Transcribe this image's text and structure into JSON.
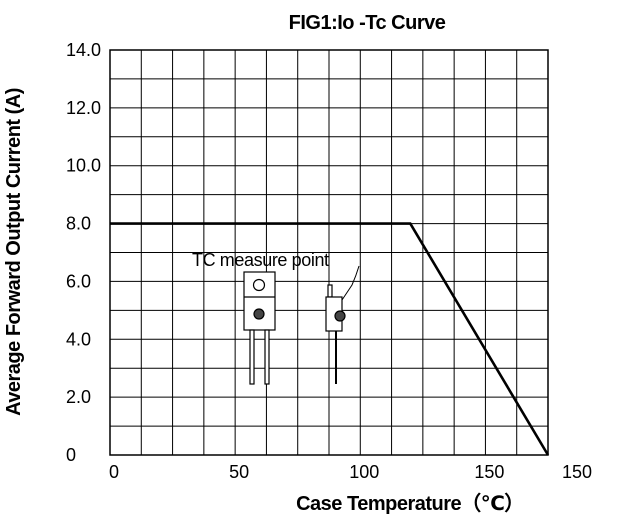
{
  "chart_data": {
    "type": "line",
    "title": "FIG1:Io -Tc Curve",
    "xlabel": "Case Temperature（℃）",
    "ylabel": "Average Forward Output Current (A)",
    "xlim": [
      0,
      175
    ],
    "ylim": [
      0,
      14
    ],
    "grid": true,
    "x_tick_labels": [
      "0",
      "50",
      "100",
      "150",
      "150"
    ],
    "y_tick_labels": [
      "0",
      "2.0",
      "4.0",
      "6.0",
      "8.0",
      "10.0",
      "12.0",
      "14.0"
    ],
    "series": [
      {
        "x": [
          0,
          120,
          175
        ],
        "y": [
          8,
          8,
          0
        ]
      }
    ],
    "annotation": "TC measure point"
  }
}
